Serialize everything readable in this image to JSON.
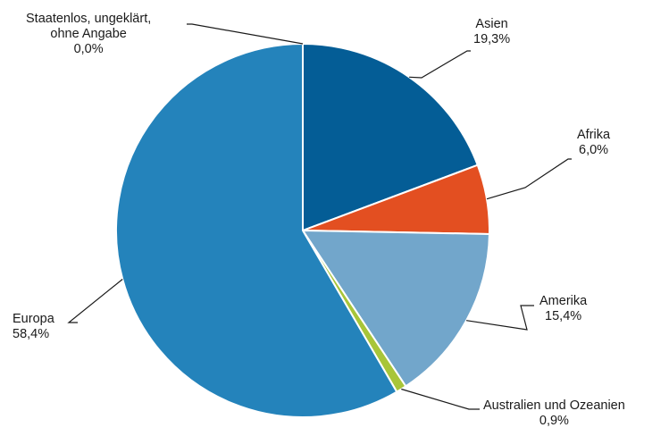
{
  "chart_data": {
    "type": "pie",
    "start_angle": "12 o'clock",
    "direction": "clockwise",
    "slices": [
      {
        "label": "Asien",
        "value": 19.3,
        "display": "19,3%",
        "color": "#045d96"
      },
      {
        "label": "Afrika",
        "value": 6.0,
        "display": "6,0%",
        "color": "#e34f21"
      },
      {
        "label": "Amerika",
        "value": 15.4,
        "display": "15,4%",
        "color": "#72a6cb"
      },
      {
        "label": "Australien und Ozeanien",
        "value": 0.9,
        "display": "0,9%",
        "color": "#a8c539"
      },
      {
        "label": "Europa",
        "value": 58.4,
        "display": "58,4%",
        "color": "#2483bb"
      },
      {
        "label": "Staatenlos, ungeklärt, ohne Angabe",
        "label_lines": [
          "Staatenlos, ungeklärt,",
          "ohne Angabe"
        ],
        "value": 0.0,
        "display": "0,0%",
        "color": "#1a1a1a"
      }
    ]
  }
}
